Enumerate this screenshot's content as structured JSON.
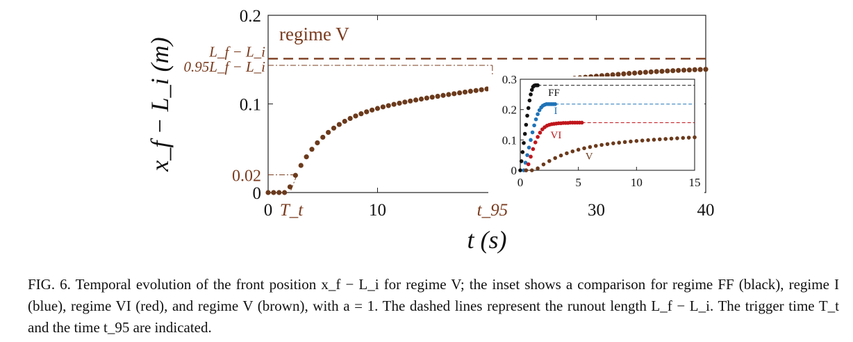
{
  "chart_data": [
    {
      "type": "scatter",
      "name": "main",
      "annotation": "regime V",
      "xlabel": "t (s)",
      "ylabel": "x_f − L_i (m)",
      "xlim": [
        0,
        40
      ],
      "ylim": [
        0,
        0.2
      ],
      "xticks": [
        {
          "v": 0,
          "label": "0"
        },
        {
          "v": 10,
          "label": "10"
        },
        {
          "v": 30,
          "label": "30"
        },
        {
          "v": 40,
          "label": "40"
        }
      ],
      "yticks": [
        {
          "v": 0,
          "label": "0"
        },
        {
          "v": 0.1,
          "label": "0.1"
        },
        {
          "v": 0.2,
          "label": "0.2"
        }
      ],
      "marked_values": {
        "T_t": {
          "x": 2,
          "label": "T_t"
        },
        "t95": {
          "x": 20.5,
          "label": "t_95"
        },
        "y_002": {
          "y": 0.02,
          "label": "0.02"
        },
        "Lf_minus_Li": {
          "y": 0.151,
          "label": "L_f − L_i"
        },
        "p95": {
          "y": 0.1435,
          "label": "0.95L_f − L_i"
        }
      },
      "color": "#6B3A1C",
      "reference_color": "#7a3b1e",
      "series": [
        {
          "x": [
            0,
            0.5,
            1,
            1.5,
            2,
            2.5,
            3,
            3.5,
            4,
            4.5,
            5,
            5.5,
            6,
            6.5,
            7,
            7.5,
            8,
            8.5,
            9,
            9.5,
            10,
            10.5,
            11,
            11.5,
            12,
            12.5,
            13,
            13.5,
            14,
            14.5,
            15,
            15.5,
            16,
            16.5,
            17,
            17.5,
            18,
            18.5,
            19,
            19.5,
            20,
            20.5,
            21,
            21.5,
            22,
            22.5,
            23,
            23.5,
            24,
            24.5,
            25,
            25.5,
            26,
            26.5,
            27,
            27.5,
            28,
            28.5,
            29,
            29.5,
            30,
            30.5,
            31,
            31.5,
            32,
            32.5,
            33,
            33.5,
            34,
            34.5,
            35,
            35.5,
            36,
            36.5,
            37,
            37.5,
            38,
            38.5,
            39,
            39.5,
            40
          ],
          "y": [
            0.0,
            0.0,
            0.0,
            0.0,
            0.0064,
            0.0194,
            0.0306,
            0.0403,
            0.0488,
            0.0561,
            0.0624,
            0.0679,
            0.0727,
            0.0768,
            0.0804,
            0.0836,
            0.0864,
            0.0889,
            0.0911,
            0.0931,
            0.0949,
            0.0966,
            0.0981,
            0.0995,
            0.1008,
            0.1021,
            0.1033,
            0.1044,
            0.1055,
            0.1066,
            0.1076,
            0.1086,
            0.1096,
            0.1106,
            0.1115,
            0.1125,
            0.1134,
            0.1143,
            0.1151,
            0.116,
            0.1169,
            0.1177,
            0.1186,
            0.1194,
            0.1202,
            0.121,
            0.1218,
            0.1226,
            0.1233,
            0.1241,
            0.1248,
            0.1255,
            0.1262,
            0.1269,
            0.1276,
            0.1282,
            0.1289,
            0.1295,
            0.1301,
            0.1307,
            0.1313,
            0.1319,
            0.1324,
            0.1329,
            0.1334,
            0.1339,
            0.1344,
            0.1348,
            0.1353,
            0.1357,
            0.1361,
            0.1365,
            0.1368,
            0.1372,
            0.1375,
            0.1378,
            0.1381,
            0.1383,
            0.1386,
            0.1388,
            0.139
          ]
        }
      ]
    },
    {
      "type": "scatter",
      "name": "inset",
      "xlim": [
        0,
        15
      ],
      "ylim": [
        0,
        0.3
      ],
      "xticks": [
        {
          "v": 0,
          "label": "0"
        },
        {
          "v": 5,
          "label": "5"
        },
        {
          "v": 10,
          "label": "10"
        },
        {
          "v": 15,
          "label": "15"
        }
      ],
      "yticks": [
        {
          "v": 0,
          "label": "0"
        },
        {
          "v": 0.1,
          "label": "0.1"
        },
        {
          "v": 0.2,
          "label": "0.2"
        },
        {
          "v": 0.3,
          "label": "0.3"
        }
      ],
      "series": [
        {
          "name": "FF",
          "color": "#111111",
          "runout": 0.28,
          "x": [
            0.0,
            0.1,
            0.2,
            0.3,
            0.4,
            0.5,
            0.6,
            0.7,
            0.8,
            0.9,
            1.0,
            1.1,
            1.2,
            1.3,
            1.4,
            1.5
          ],
          "y": [
            0.0,
            0.03,
            0.06,
            0.09,
            0.12,
            0.15,
            0.18,
            0.205,
            0.23,
            0.25,
            0.265,
            0.275,
            0.279,
            0.28,
            0.28,
            0.28
          ]
        },
        {
          "name": "I",
          "color": "#1f73b7",
          "runout": 0.218,
          "x": [
            0.3,
            0.45,
            0.6,
            0.75,
            0.9,
            1.05,
            1.2,
            1.35,
            1.5,
            1.65,
            1.8,
            1.95,
            2.1,
            2.25,
            2.4,
            2.55,
            2.7,
            2.85,
            3.0
          ],
          "y": [
            0.0,
            0.025,
            0.05,
            0.075,
            0.1,
            0.125,
            0.148,
            0.168,
            0.185,
            0.198,
            0.207,
            0.213,
            0.216,
            0.218,
            0.218,
            0.218,
            0.218,
            0.218,
            0.218
          ]
        },
        {
          "name": "VI",
          "color": "#c0161c",
          "runout": 0.157,
          "x": [
            0.5,
            0.7,
            0.9,
            1.1,
            1.3,
            1.5,
            1.7,
            1.9,
            2.1,
            2.3,
            2.5,
            2.7,
            2.9,
            3.1,
            3.3,
            3.5,
            3.7,
            3.9,
            4.1,
            4.3,
            4.5,
            4.7,
            4.9,
            5.1,
            5.3
          ],
          "y": [
            0.0,
            0.02,
            0.045,
            0.07,
            0.092,
            0.11,
            0.124,
            0.135,
            0.142,
            0.147,
            0.15,
            0.152,
            0.153,
            0.154,
            0.155,
            0.155,
            0.156,
            0.156,
            0.156,
            0.157,
            0.157,
            0.157,
            0.157,
            0.157,
            0.157
          ]
        },
        {
          "name": "V",
          "color": "#6B3A1C",
          "runout": 0.147,
          "x": [
            0.5,
            1,
            1.5,
            2,
            2.5,
            3,
            3.5,
            4,
            4.5,
            5,
            5.5,
            6,
            6.5,
            7,
            7.5,
            8,
            8.5,
            9,
            9.5,
            10,
            10.5,
            11,
            11.5,
            12,
            12.5,
            13,
            13.5,
            14,
            14.5,
            15
          ],
          "y": [
            0.0,
            0.0,
            0.0064,
            0.0194,
            0.0306,
            0.0403,
            0.0488,
            0.0561,
            0.0624,
            0.0679,
            0.0727,
            0.0768,
            0.0804,
            0.0836,
            0.0864,
            0.0889,
            0.0911,
            0.0931,
            0.0949,
            0.0966,
            0.0981,
            0.0995,
            0.1008,
            0.1021,
            0.1033,
            0.1044,
            0.1055,
            0.1066,
            0.1076,
            0.1086
          ]
        }
      ]
    }
  ],
  "caption": {
    "label": "FIG. 6.",
    "line1": "Temporal evolution of the front position x_f − L_i for regime V; the inset shows a comparison for",
    "line2": "regime FF (black), regime I (blue), regime VI (red), and regime V (brown), with a = 1. The dashed lines",
    "line3": "represent the runout length L_f − L_i. The trigger time T_t and the time t_95 are indicated."
  }
}
